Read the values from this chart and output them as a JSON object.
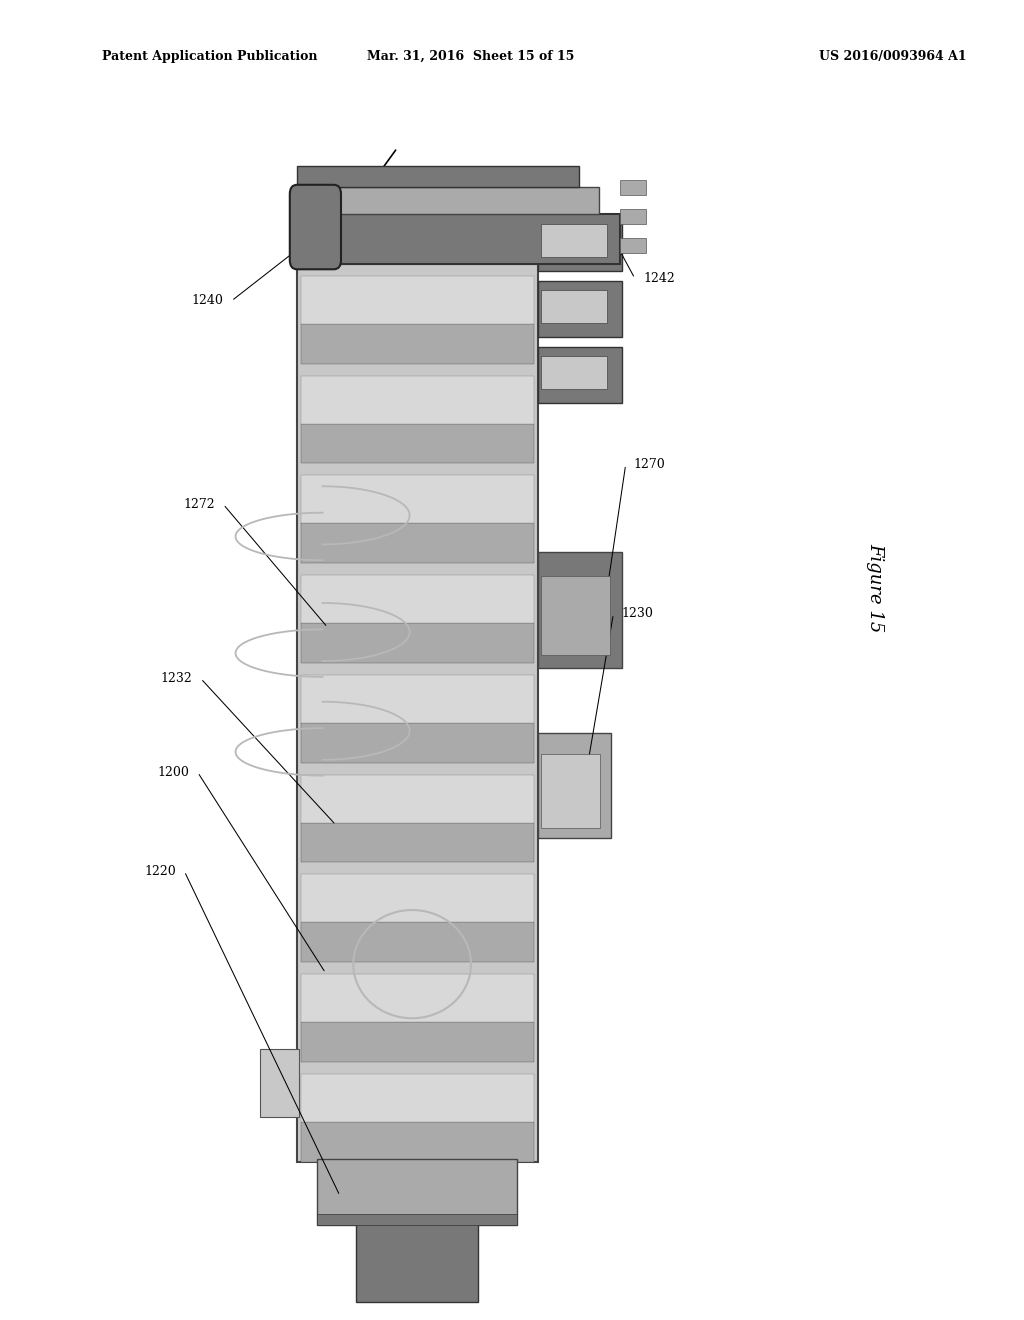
{
  "title_left": "Patent Application Publication",
  "title_mid": "Mar. 31, 2016  Sheet 15 of 15",
  "title_right": "US 2016/0093964 A1",
  "figure_label": "Figure 15",
  "background_color": "#ffffff",
  "dc": "#787878",
  "mc": "#aaaaaa",
  "lc": "#c8c8c8",
  "llc": "#d8d8d8"
}
